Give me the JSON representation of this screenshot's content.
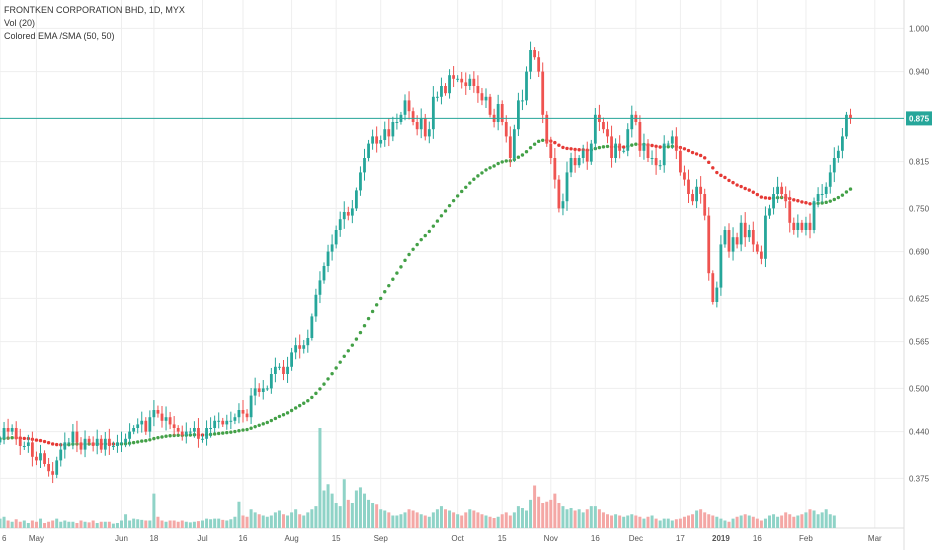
{
  "header": {
    "title": "FRONTKEN CORPORATION BHD, 1D, MYX",
    "indicator1": "Vol (20)",
    "indicator2": "Colored EMA /SMA (50, 50)"
  },
  "colors": {
    "up": "#26a69a",
    "down": "#ef5350",
    "ma_up": "#43a047",
    "ma_down": "#e53935",
    "vol_up": "#8fd3c7",
    "vol_down": "#f4a7a5",
    "price_line": "#26a69a",
    "grid": "#eeeeee"
  },
  "chart_data": {
    "type": "candlestick",
    "current_price": "0.875",
    "y_ticks": [
      "1.000",
      "0.940",
      "0.875",
      "0.815",
      "0.750",
      "0.690",
      "0.625",
      "0.565",
      "0.500",
      "0.440",
      "0.375"
    ],
    "y_tick_values": [
      1.0,
      0.94,
      0.875,
      0.815,
      0.75,
      0.69,
      0.625,
      0.565,
      0.5,
      0.44,
      0.375
    ],
    "ylim": [
      0.32,
      1.02
    ],
    "x_ticks": [
      {
        "label": "6",
        "idx": 0
      },
      {
        "label": "May",
        "idx": 9
      },
      {
        "label": "Jun",
        "idx": 30
      },
      {
        "label": "18",
        "idx": 38
      },
      {
        "label": "Jul",
        "idx": 50
      },
      {
        "label": "16",
        "idx": 60
      },
      {
        "label": "Aug",
        "idx": 72
      },
      {
        "label": "15",
        "idx": 83
      },
      {
        "label": "Sep",
        "idx": 94
      },
      {
        "label": "Oct",
        "idx": 113
      },
      {
        "label": "15",
        "idx": 124
      },
      {
        "label": "Nov",
        "idx": 136
      },
      {
        "label": "16",
        "idx": 147
      },
      {
        "label": "Dec",
        "idx": 157
      },
      {
        "label": "17",
        "idx": 168
      },
      {
        "label": "2019",
        "idx": 178
      },
      {
        "label": "16",
        "idx": 187
      },
      {
        "label": "Feb",
        "idx": 199
      },
      {
        "label": "Mar",
        "idx": 216
      }
    ],
    "closes": [
      0.43,
      0.445,
      0.44,
      0.445,
      0.43,
      0.42,
      0.42,
      0.425,
      0.405,
      0.4,
      0.41,
      0.395,
      0.385,
      0.38,
      0.4,
      0.415,
      0.425,
      0.425,
      0.44,
      0.425,
      0.415,
      0.43,
      0.425,
      0.42,
      0.43,
      0.415,
      0.43,
      0.42,
      0.42,
      0.425,
      0.425,
      0.43,
      0.44,
      0.445,
      0.45,
      0.455,
      0.44,
      0.46,
      0.47,
      0.465,
      0.455,
      0.46,
      0.45,
      0.445,
      0.44,
      0.435,
      0.44,
      0.44,
      0.445,
      0.43,
      0.43,
      0.445,
      0.445,
      0.455,
      0.455,
      0.45,
      0.455,
      0.455,
      0.46,
      0.47,
      0.465,
      0.46,
      0.49,
      0.5,
      0.495,
      0.5,
      0.5,
      0.52,
      0.53,
      0.53,
      0.52,
      0.53,
      0.55,
      0.56,
      0.555,
      0.56,
      0.57,
      0.6,
      0.63,
      0.65,
      0.67,
      0.69,
      0.7,
      0.72,
      0.735,
      0.745,
      0.74,
      0.75,
      0.775,
      0.8,
      0.82,
      0.84,
      0.85,
      0.84,
      0.845,
      0.86,
      0.85,
      0.87,
      0.87,
      0.88,
      0.9,
      0.885,
      0.87,
      0.86,
      0.875,
      0.85,
      0.86,
      0.905,
      0.905,
      0.92,
      0.91,
      0.935,
      0.93,
      0.93,
      0.925,
      0.92,
      0.93,
      0.92,
      0.91,
      0.9,
      0.905,
      0.88,
      0.87,
      0.895,
      0.87,
      0.85,
      0.82,
      0.86,
      0.9,
      0.9,
      0.94,
      0.97,
      0.96,
      0.94,
      0.88,
      0.84,
      0.82,
      0.79,
      0.75,
      0.76,
      0.8,
      0.82,
      0.81,
      0.82,
      0.83,
      0.815,
      0.84,
      0.88,
      0.87,
      0.86,
      0.85,
      0.82,
      0.84,
      0.83,
      0.83,
      0.86,
      0.88,
      0.87,
      0.83,
      0.84,
      0.82,
      0.82,
      0.81,
      0.81,
      0.84,
      0.84,
      0.85,
      0.83,
      0.8,
      0.79,
      0.77,
      0.76,
      0.78,
      0.77,
      0.74,
      0.66,
      0.62,
      0.64,
      0.7,
      0.72,
      0.69,
      0.71,
      0.7,
      0.73,
      0.71,
      0.72,
      0.7,
      0.69,
      0.68,
      0.74,
      0.75,
      0.77,
      0.78,
      0.77,
      0.76,
      0.73,
      0.72,
      0.73,
      0.72,
      0.73,
      0.72,
      0.76,
      0.77,
      0.77,
      0.78,
      0.8,
      0.82,
      0.83,
      0.85,
      0.88,
      0.875
    ],
    "volumes": [
      0.15,
      0.18,
      0.12,
      0.1,
      0.14,
      0.1,
      0.12,
      0.08,
      0.12,
      0.1,
      0.15,
      0.08,
      0.1,
      0.12,
      0.15,
      0.1,
      0.12,
      0.1,
      0.1,
      0.08,
      0.12,
      0.1,
      0.09,
      0.12,
      0.08,
      0.1,
      0.1,
      0.1,
      0.07,
      0.08,
      0.12,
      0.22,
      0.12,
      0.15,
      0.14,
      0.13,
      0.12,
      0.12,
      0.55,
      0.18,
      0.12,
      0.1,
      0.12,
      0.12,
      0.1,
      0.12,
      0.1,
      0.09,
      0.1,
      0.11,
      0.12,
      0.15,
      0.14,
      0.15,
      0.15,
      0.13,
      0.12,
      0.14,
      0.18,
      0.42,
      0.2,
      0.18,
      0.3,
      0.25,
      0.22,
      0.2,
      0.18,
      0.2,
      0.25,
      0.28,
      0.22,
      0.2,
      0.25,
      0.3,
      0.22,
      0.2,
      0.25,
      0.3,
      0.35,
      1.6,
      0.6,
      0.7,
      0.55,
      0.4,
      0.35,
      0.78,
      0.45,
      0.4,
      0.6,
      0.65,
      0.55,
      0.45,
      0.4,
      0.38,
      0.3,
      0.28,
      0.25,
      0.2,
      0.2,
      0.22,
      0.25,
      0.3,
      0.28,
      0.25,
      0.22,
      0.2,
      0.18,
      0.25,
      0.3,
      0.35,
      0.3,
      0.28,
      0.25,
      0.22,
      0.2,
      0.25,
      0.3,
      0.28,
      0.25,
      0.22,
      0.2,
      0.18,
      0.16,
      0.18,
      0.22,
      0.25,
      0.2,
      0.25,
      0.35,
      0.32,
      0.28,
      0.45,
      0.68,
      0.5,
      0.4,
      0.42,
      0.45,
      0.55,
      0.4,
      0.35,
      0.3,
      0.32,
      0.28,
      0.3,
      0.25,
      0.3,
      0.35,
      0.35,
      0.3,
      0.25,
      0.22,
      0.2,
      0.22,
      0.2,
      0.18,
      0.2,
      0.22,
      0.2,
      0.18,
      0.15,
      0.18,
      0.2,
      0.15,
      0.12,
      0.15,
      0.15,
      0.12,
      0.14,
      0.15,
      0.18,
      0.2,
      0.22,
      0.28,
      0.3,
      0.25,
      0.22,
      0.2,
      0.18,
      0.15,
      0.12,
      0.1,
      0.15,
      0.18,
      0.2,
      0.22,
      0.2,
      0.18,
      0.15,
      0.12,
      0.15,
      0.2,
      0.22,
      0.18,
      0.2,
      0.25,
      0.22,
      0.18,
      0.2,
      0.22,
      0.25,
      0.3,
      0.28,
      0.22,
      0.25,
      0.3,
      0.22,
      0.2
    ]
  }
}
